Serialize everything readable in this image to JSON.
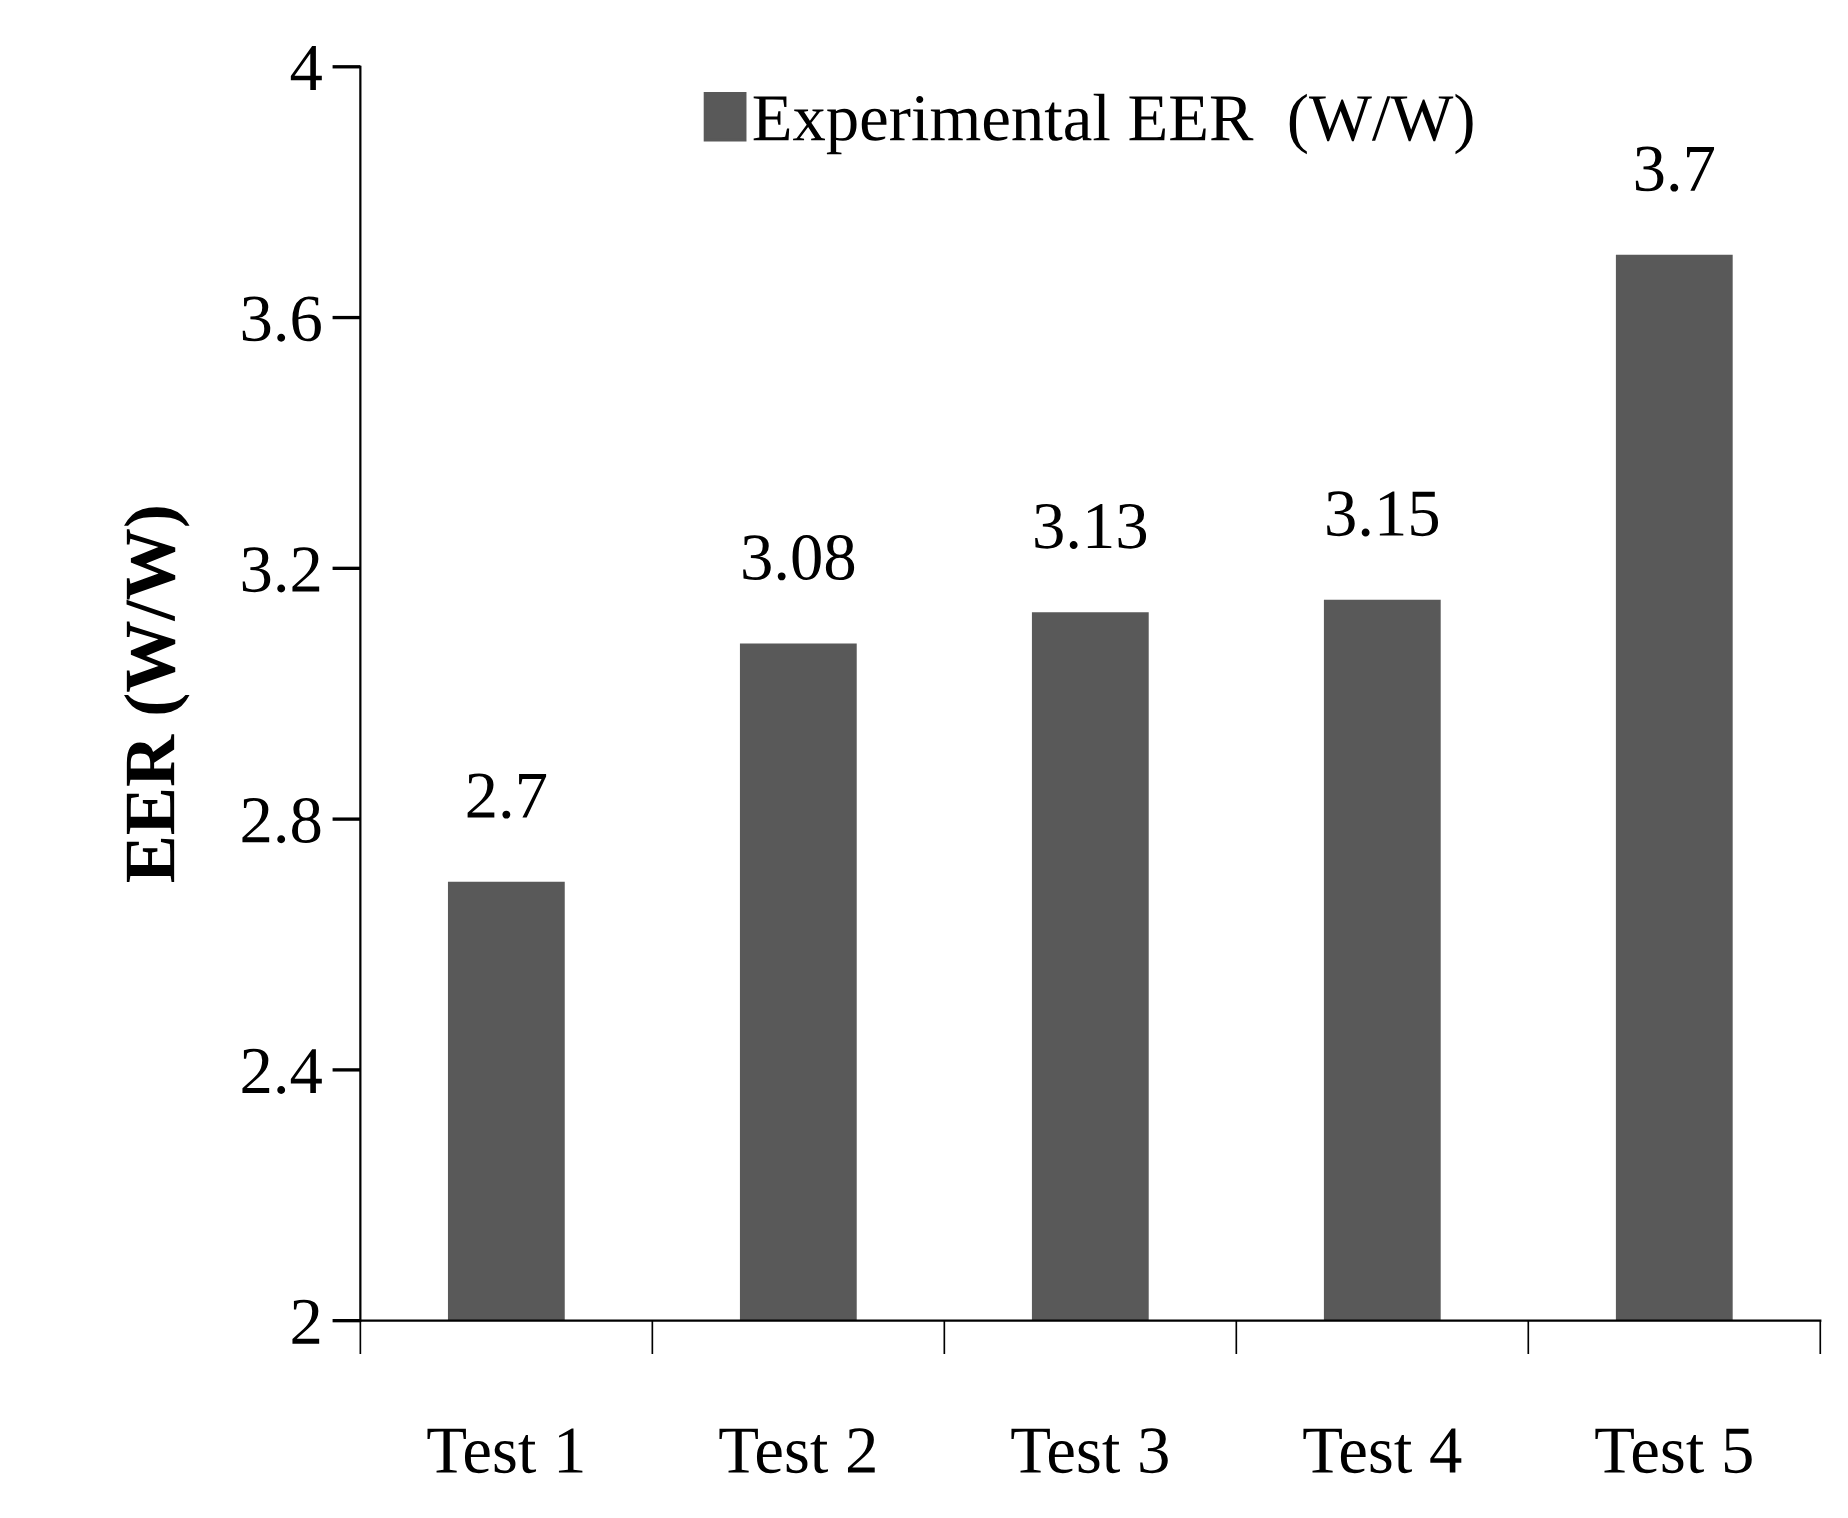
{
  "chart_data": {
    "type": "bar",
    "categories": [
      "Test 1",
      "Test 2",
      "Test 3",
      "Test 4",
      "Test 5"
    ],
    "series": [
      {
        "name": "Experimental EER  (W/W)",
        "color": "#595959",
        "values": [
          2.7,
          3.08,
          3.13,
          3.15,
          3.7
        ]
      }
    ],
    "ylabel": "EER (W/W)",
    "ylim": [
      2,
      4
    ],
    "yticks": [
      2,
      2.4,
      2.8,
      3.2,
      3.6,
      4
    ],
    "data_labels": true,
    "legend": "top",
    "grid": false
  }
}
